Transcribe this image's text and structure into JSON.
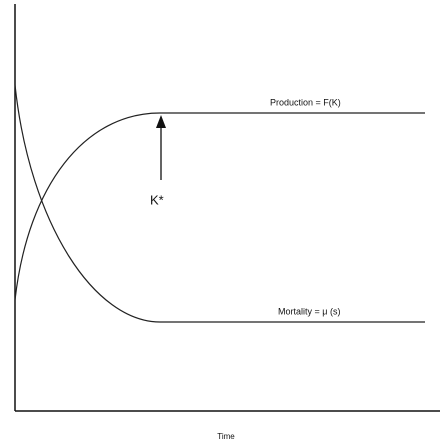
{
  "labels": {
    "production": "Production = F(K)",
    "mortality": "Mortality = μ (s)",
    "k_star": "K*",
    "x_axis": "Time"
  }
}
